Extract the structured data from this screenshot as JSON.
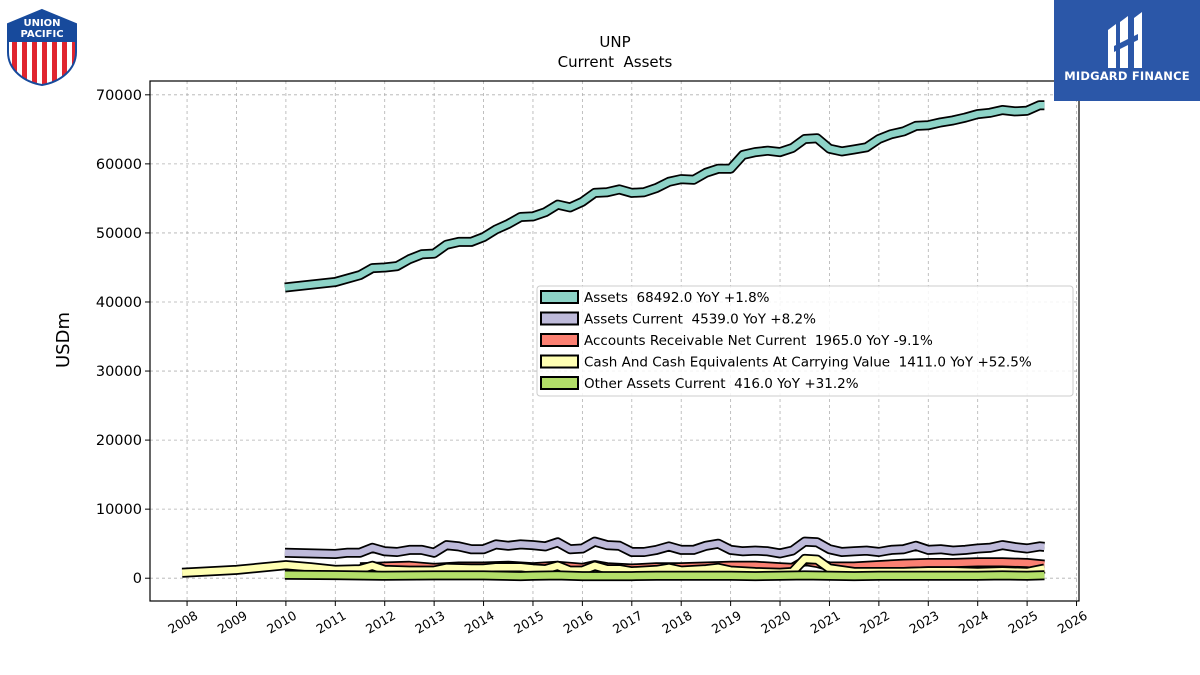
{
  "logos": {
    "left": {
      "name": "union-pacific-shield",
      "text_line1": "UNION",
      "text_line2": "PACIFIC"
    },
    "right": {
      "name": "midgard-finance-logo",
      "text": "MIDGARD FINANCE",
      "bg": "#2b57a8"
    }
  },
  "chart_data": {
    "type": "area",
    "title": "UNP",
    "subtitle": "Current  Assets",
    "xlabel": "",
    "ylabel": "USDm",
    "xlim": [
      2007.25,
      2026.05
    ],
    "ylim": [
      -3300,
      72000
    ],
    "x_ticks": [
      "2008",
      "2009",
      "2010",
      "2011",
      "2012",
      "2013",
      "2014",
      "2015",
      "2016",
      "2017",
      "2018",
      "2019",
      "2020",
      "2021",
      "2022",
      "2023",
      "2024",
      "2025",
      "2026"
    ],
    "y_ticks": [
      0,
      10000,
      20000,
      30000,
      40000,
      50000,
      60000,
      70000
    ],
    "y_tick_labels": [
      "0",
      "10000",
      "20000",
      "30000",
      "40000",
      "50000",
      "60000",
      "70000"
    ],
    "grid": true,
    "legend_position": "center-right",
    "series": [
      {
        "name": "Assets",
        "legend": "Assets  68492.0 YoY +1.8%",
        "color": "#8dd3c7",
        "points": [
          [
            2009.98,
            42100
          ],
          [
            2011.0,
            42900
          ],
          [
            2011.5,
            43900
          ],
          [
            2011.75,
            44900
          ],
          [
            2012.0,
            45000
          ],
          [
            2012.25,
            45200
          ],
          [
            2012.5,
            46200
          ],
          [
            2012.75,
            46900
          ],
          [
            2013.0,
            47000
          ],
          [
            2013.25,
            48300
          ],
          [
            2013.5,
            48700
          ],
          [
            2013.75,
            48700
          ],
          [
            2014.0,
            49400
          ],
          [
            2014.25,
            50500
          ],
          [
            2014.5,
            51300
          ],
          [
            2014.75,
            52300
          ],
          [
            2015.0,
            52400
          ],
          [
            2015.25,
            53000
          ],
          [
            2015.5,
            54100
          ],
          [
            2015.75,
            53700
          ],
          [
            2016.0,
            54500
          ],
          [
            2016.25,
            55800
          ],
          [
            2016.5,
            55900
          ],
          [
            2016.75,
            56300
          ],
          [
            2017.0,
            55800
          ],
          [
            2017.25,
            55900
          ],
          [
            2017.5,
            56500
          ],
          [
            2017.75,
            57400
          ],
          [
            2018.0,
            57800
          ],
          [
            2018.25,
            57700
          ],
          [
            2018.5,
            58700
          ],
          [
            2018.75,
            59300
          ],
          [
            2019.0,
            59300
          ],
          [
            2019.25,
            61300
          ],
          [
            2019.5,
            61700
          ],
          [
            2019.75,
            61900
          ],
          [
            2020.0,
            61700
          ],
          [
            2020.25,
            62300
          ],
          [
            2020.5,
            63600
          ],
          [
            2020.75,
            63700
          ],
          [
            2021.0,
            62200
          ],
          [
            2021.25,
            61800
          ],
          [
            2021.5,
            62100
          ],
          [
            2021.75,
            62400
          ],
          [
            2022.0,
            63600
          ],
          [
            2022.25,
            64300
          ],
          [
            2022.5,
            64700
          ],
          [
            2022.75,
            65500
          ],
          [
            2023.0,
            65600
          ],
          [
            2023.25,
            66000
          ],
          [
            2023.5,
            66300
          ],
          [
            2023.75,
            66700
          ],
          [
            2024.0,
            67200
          ],
          [
            2024.25,
            67400
          ],
          [
            2024.5,
            67800
          ],
          [
            2024.75,
            67600
          ],
          [
            2025.0,
            67700
          ],
          [
            2025.25,
            68500
          ],
          [
            2025.35,
            68492
          ]
        ]
      },
      {
        "name": "Assets Current",
        "legend": "Assets Current  4539.0 YoY +8.2%",
        "color": "#bebada",
        "points": [
          [
            2009.98,
            3700
          ],
          [
            2011.0,
            3500
          ],
          [
            2011.25,
            3700
          ],
          [
            2011.5,
            3700
          ],
          [
            2011.75,
            4400
          ],
          [
            2012.0,
            3900
          ],
          [
            2012.25,
            3800
          ],
          [
            2012.5,
            4100
          ],
          [
            2012.75,
            4100
          ],
          [
            2013.0,
            3700
          ],
          [
            2013.25,
            4800
          ],
          [
            2013.5,
            4600
          ],
          [
            2013.75,
            4200
          ],
          [
            2014.0,
            4200
          ],
          [
            2014.25,
            4900
          ],
          [
            2014.5,
            4700
          ],
          [
            2014.75,
            4900
          ],
          [
            2015.0,
            4800
          ],
          [
            2015.25,
            4600
          ],
          [
            2015.5,
            5200
          ],
          [
            2015.75,
            4200
          ],
          [
            2016.0,
            4300
          ],
          [
            2016.25,
            5300
          ],
          [
            2016.5,
            4800
          ],
          [
            2016.75,
            4700
          ],
          [
            2017.0,
            3800
          ],
          [
            2017.25,
            3800
          ],
          [
            2017.5,
            4100
          ],
          [
            2017.75,
            4600
          ],
          [
            2018.0,
            4100
          ],
          [
            2018.25,
            4100
          ],
          [
            2018.5,
            4700
          ],
          [
            2018.75,
            5000
          ],
          [
            2019.0,
            4100
          ],
          [
            2019.25,
            3900
          ],
          [
            2019.5,
            4000
          ],
          [
            2019.75,
            3900
          ],
          [
            2020.0,
            3600
          ],
          [
            2020.25,
            4000
          ],
          [
            2020.5,
            5300
          ],
          [
            2020.75,
            5200
          ],
          [
            2021.0,
            4200
          ],
          [
            2021.25,
            3800
          ],
          [
            2021.5,
            3900
          ],
          [
            2021.75,
            4000
          ],
          [
            2022.0,
            3800
          ],
          [
            2022.25,
            4100
          ],
          [
            2022.5,
            4200
          ],
          [
            2022.75,
            4700
          ],
          [
            2023.0,
            4100
          ],
          [
            2023.25,
            4200
          ],
          [
            2023.5,
            4000
          ],
          [
            2023.75,
            4100
          ],
          [
            2024.0,
            4300
          ],
          [
            2024.25,
            4400
          ],
          [
            2024.5,
            4800
          ],
          [
            2024.75,
            4500
          ],
          [
            2025.0,
            4300
          ],
          [
            2025.25,
            4600
          ],
          [
            2025.35,
            4539
          ]
        ]
      },
      {
        "name": "Accounts Receivable Net Current",
        "legend": "Accounts Receivable Net Current  1965.0 YoY -9.1%",
        "color": "#fb8072",
        "points": [
          [
            2011.5,
            1600
          ],
          [
            2012.0,
            1700
          ],
          [
            2012.5,
            1800
          ],
          [
            2013.0,
            1500
          ],
          [
            2013.5,
            1700
          ],
          [
            2014.0,
            1700
          ],
          [
            2014.5,
            1800
          ],
          [
            2015.0,
            1600
          ],
          [
            2015.5,
            1800
          ],
          [
            2016.0,
            1500
          ],
          [
            2016.25,
            1900
          ],
          [
            2016.5,
            1600
          ],
          [
            2017.0,
            1400
          ],
          [
            2017.5,
            1600
          ],
          [
            2018.0,
            1600
          ],
          [
            2018.5,
            1700
          ],
          [
            2019.0,
            1800
          ],
          [
            2019.5,
            1800
          ],
          [
            2020.0,
            1600
          ],
          [
            2020.25,
            1500
          ],
          [
            2020.5,
            2500
          ],
          [
            2020.75,
            2200
          ],
          [
            2021.0,
            1700
          ],
          [
            2021.5,
            1700
          ],
          [
            2022.0,
            1900
          ],
          [
            2022.5,
            2100
          ],
          [
            2023.0,
            2200
          ],
          [
            2023.5,
            2200
          ],
          [
            2024.0,
            2300
          ],
          [
            2024.5,
            2300
          ],
          [
            2025.0,
            2200
          ],
          [
            2025.35,
            1965
          ]
        ]
      },
      {
        "name": "Cash And Cash Equivalents At Carrying Value",
        "legend": "Cash And Cash Equivalents At Carrying Value  1411.0 YoY +52.5%",
        "color": "#ffffb3",
        "points": [
          [
            2007.9,
            800
          ],
          [
            2009.0,
            1200
          ],
          [
            2010.0,
            1900
          ],
          [
            2010.5,
            1600
          ],
          [
            2011.0,
            1200
          ],
          [
            2011.5,
            1300
          ],
          [
            2011.75,
            1800
          ],
          [
            2012.0,
            1200
          ],
          [
            2012.5,
            1100
          ],
          [
            2013.0,
            1100
          ],
          [
            2013.25,
            1500
          ],
          [
            2013.75,
            1400
          ],
          [
            2014.0,
            1400
          ],
          [
            2014.25,
            1600
          ],
          [
            2014.75,
            1600
          ],
          [
            2015.0,
            1400
          ],
          [
            2015.25,
            1300
          ],
          [
            2015.5,
            1800
          ],
          [
            2015.75,
            1100
          ],
          [
            2016.0,
            1100
          ],
          [
            2016.25,
            1800
          ],
          [
            2016.5,
            1300
          ],
          [
            2016.75,
            1300
          ],
          [
            2017.0,
            1000
          ],
          [
            2017.5,
            1200
          ],
          [
            2017.75,
            1500
          ],
          [
            2018.0,
            1100
          ],
          [
            2018.5,
            1300
          ],
          [
            2018.75,
            1500
          ],
          [
            2019.0,
            1100
          ],
          [
            2019.5,
            900
          ],
          [
            2020.0,
            800
          ],
          [
            2020.25,
            900
          ],
          [
            2020.5,
            2800
          ],
          [
            2020.75,
            2700
          ],
          [
            2021.0,
            1400
          ],
          [
            2021.5,
            900
          ],
          [
            2022.0,
            900
          ],
          [
            2022.5,
            900
          ],
          [
            2023.0,
            1000
          ],
          [
            2023.5,
            1000
          ],
          [
            2024.0,
            900
          ],
          [
            2024.5,
            1000
          ],
          [
            2025.0,
            900
          ],
          [
            2025.35,
            1411
          ]
        ]
      },
      {
        "name": "Other Assets Current",
        "legend": "Other Assets Current  416.0 YoY +31.2%",
        "color": "#b3de69",
        "points": [
          [
            2009.98,
            500
          ],
          [
            2011.0,
            450
          ],
          [
            2012.0,
            350
          ],
          [
            2013.0,
            400
          ],
          [
            2014.0,
            400
          ],
          [
            2014.75,
            300
          ],
          [
            2015.0,
            350
          ],
          [
            2015.5,
            400
          ],
          [
            2016.0,
            300
          ],
          [
            2016.5,
            300
          ],
          [
            2017.0,
            300
          ],
          [
            2017.5,
            350
          ],
          [
            2018.0,
            350
          ],
          [
            2018.5,
            350
          ],
          [
            2019.0,
            350
          ],
          [
            2019.5,
            300
          ],
          [
            2020.0,
            350
          ],
          [
            2020.5,
            400
          ],
          [
            2021.0,
            350
          ],
          [
            2021.5,
            300
          ],
          [
            2022.0,
            350
          ],
          [
            2022.5,
            350
          ],
          [
            2023.0,
            350
          ],
          [
            2023.5,
            350
          ],
          [
            2024.0,
            350
          ],
          [
            2024.5,
            400
          ],
          [
            2025.0,
            350
          ],
          [
            2025.35,
            416
          ]
        ]
      }
    ]
  }
}
